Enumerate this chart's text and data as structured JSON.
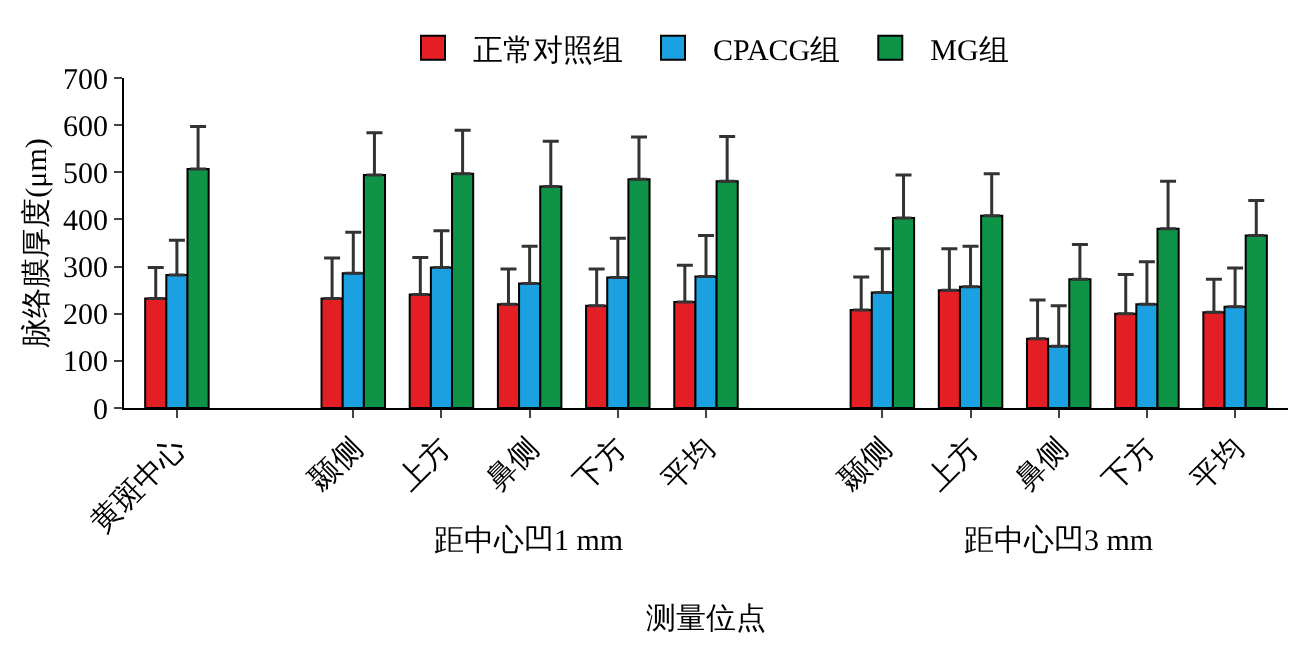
{
  "chart_data": {
    "type": "bar",
    "ylabel": "脉络膜厚度(μm)",
    "xlabel": "测量位点",
    "categories": [
      "黄斑中心",
      null,
      "颞侧",
      "上方",
      "鼻侧",
      "下方",
      "平均",
      null,
      "颞侧",
      "上方",
      "鼻侧",
      "下方",
      "平均"
    ],
    "series": [
      {
        "name": "正常对照组",
        "color": "#e31e24",
        "values": [
          232,
          null,
          232,
          241,
          220,
          217,
          225,
          null,
          208,
          250,
          147,
          200,
          203
        ],
        "errors": [
          [
            232,
            298
          ],
          null,
          [
            232,
            318
          ],
          [
            241,
            319
          ],
          [
            220,
            295
          ],
          [
            217,
            295
          ],
          [
            225,
            303
          ],
          null,
          [
            208,
            278
          ],
          [
            250,
            338
          ],
          [
            147,
            229
          ],
          [
            200,
            283
          ],
          [
            203,
            273
          ]
        ]
      },
      {
        "name": "CPACG组",
        "color": "#1ba1e2",
        "values": [
          282,
          null,
          286,
          298,
          264,
          277,
          279,
          null,
          245,
          257,
          131,
          220,
          215
        ],
        "errors": [
          [
            282,
            356
          ],
          null,
          [
            286,
            373
          ],
          [
            298,
            376
          ],
          [
            264,
            343
          ],
          [
            277,
            360
          ],
          [
            279,
            366
          ],
          null,
          [
            245,
            338
          ],
          [
            257,
            343
          ],
          [
            131,
            217
          ],
          [
            220,
            310
          ],
          [
            215,
            297
          ]
        ]
      },
      {
        "name": "MG组",
        "color": "#0f9447",
        "values": [
          507,
          null,
          494,
          497,
          470,
          485,
          481,
          null,
          403,
          408,
          273,
          380,
          366
        ],
        "errors": [
          [
            507,
            597
          ],
          null,
          [
            494,
            584
          ],
          [
            497,
            589
          ],
          [
            470,
            566
          ],
          [
            485,
            575
          ],
          [
            481,
            576
          ],
          null,
          [
            403,
            494
          ],
          [
            408,
            497
          ],
          [
            273,
            347
          ],
          [
            380,
            481
          ],
          [
            366,
            440
          ]
        ]
      }
    ],
    "ylim": [
      0,
      700
    ],
    "yticks": [
      0,
      100,
      200,
      300,
      400,
      500,
      600,
      700
    ],
    "grid": false,
    "legend": "top",
    "annotations": [
      "距中心凹1 mm",
      "距中心凹3 mm"
    ]
  }
}
